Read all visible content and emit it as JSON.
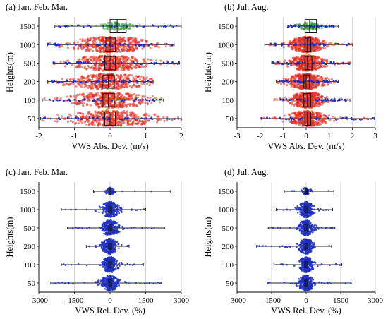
{
  "chart_data": [
    {
      "type": "scatter",
      "title": "(a) Jan. Feb. Mar.",
      "xlabel": "VWS Abs. Dev. (m/s)",
      "ylabel": "Heights(m)",
      "xlim": [
        -2,
        2
      ],
      "xticks": [
        "-2",
        "-1",
        "0",
        "1",
        "2"
      ],
      "categories": [
        "50",
        "100",
        "200",
        "500",
        "1000",
        "1500"
      ],
      "grid": "vertical",
      "series": [
        {
          "category": "1500",
          "min": -1.55,
          "max": 2.0,
          "q1": 0.0,
          "median": 0.2,
          "q3": 0.45,
          "spread": 0.45,
          "density": "low",
          "color": "#2ca02c"
        },
        {
          "category": "1000",
          "min": -1.75,
          "max": 1.8,
          "q1": -0.12,
          "median": 0.0,
          "q3": 0.15,
          "spread": 0.9,
          "density": "high",
          "color": "#e03020"
        },
        {
          "category": "500",
          "min": -1.6,
          "max": 1.95,
          "q1": -0.15,
          "median": 0.0,
          "q3": 0.15,
          "spread": 0.85,
          "density": "high",
          "color": "#e03020"
        },
        {
          "category": "200",
          "min": -1.75,
          "max": 1.2,
          "q1": -0.2,
          "median": -0.05,
          "q3": 0.12,
          "spread": 0.9,
          "density": "high",
          "color": "#e03020"
        },
        {
          "category": "100",
          "min": -1.9,
          "max": 1.5,
          "q1": -0.2,
          "median": -0.05,
          "q3": 0.12,
          "spread": 0.95,
          "density": "high",
          "color": "#e03020"
        },
        {
          "category": "50",
          "min": -1.95,
          "max": 2.0,
          "q1": -0.15,
          "median": 0.0,
          "q3": 0.15,
          "spread": 1.0,
          "density": "high",
          "color": "#e03020"
        }
      ]
    },
    {
      "type": "scatter",
      "title": "(b) Jul. Aug.",
      "xlabel": "VWS Abs. Dev. (m/s)",
      "ylabel": "Heights(m)",
      "xlim": [
        -3,
        3
      ],
      "xticks": [
        "-3",
        "-2",
        "-1",
        "0",
        "1",
        "2",
        "3"
      ],
      "categories": [
        "50",
        "100",
        "200",
        "500",
        "1000",
        "1500"
      ],
      "grid": "vertical",
      "series": [
        {
          "category": "1500",
          "min": -0.8,
          "max": 1.4,
          "q1": -0.05,
          "median": 0.15,
          "q3": 0.45,
          "spread": 0.4,
          "density": "low",
          "color": "#2ca02c"
        },
        {
          "category": "1000",
          "min": -1.8,
          "max": 2.0,
          "q1": -0.05,
          "median": 0.05,
          "q3": 0.2,
          "spread": 0.6,
          "density": "high",
          "color": "#e03020"
        },
        {
          "category": "500",
          "min": -1.5,
          "max": 1.9,
          "q1": -0.05,
          "median": 0.05,
          "q3": 0.25,
          "spread": 0.6,
          "density": "high",
          "color": "#e03020"
        },
        {
          "category": "200",
          "min": -1.3,
          "max": 1.4,
          "q1": -0.1,
          "median": 0.0,
          "q3": 0.15,
          "spread": 0.65,
          "density": "high",
          "color": "#e03020"
        },
        {
          "category": "100",
          "min": -1.4,
          "max": 1.9,
          "q1": -0.1,
          "median": 0.05,
          "q3": 0.2,
          "spread": 0.65,
          "density": "high",
          "color": "#e03020"
        },
        {
          "category": "50",
          "min": -1.95,
          "max": 2.95,
          "q1": -0.05,
          "median": 0.05,
          "q3": 0.2,
          "spread": 0.7,
          "density": "high",
          "color": "#e03020"
        }
      ]
    },
    {
      "type": "scatter",
      "title": "(c) Jan. Feb. Mar.",
      "xlabel": "VWS Rel. Dev. (%)",
      "ylabel": "Heights(m)",
      "xlim": [
        -3000,
        3000
      ],
      "xticks": [
        "-3000",
        "-1500",
        "0",
        "1500",
        "3000"
      ],
      "categories": [
        "50",
        "100",
        "200",
        "500",
        "1000",
        "1500"
      ],
      "grid": "vertical",
      "series": [
        {
          "category": "1500",
          "min": -700,
          "max": 2550,
          "q1": -40,
          "median": 0,
          "q3": 40,
          "spread": 150,
          "density": "low",
          "color": "#2030c0"
        },
        {
          "category": "1000",
          "min": -2050,
          "max": 1500,
          "q1": -60,
          "median": 0,
          "q3": 60,
          "spread": 300,
          "density": "high",
          "color": "#2030c0"
        },
        {
          "category": "500",
          "min": -1800,
          "max": 2300,
          "q1": -60,
          "median": 0,
          "q3": 60,
          "spread": 300,
          "density": "high",
          "color": "#2030c0"
        },
        {
          "category": "200",
          "min": -1000,
          "max": 800,
          "q1": -60,
          "median": 0,
          "q3": 60,
          "spread": 260,
          "density": "high",
          "color": "#2030c0"
        },
        {
          "category": "100",
          "min": -2050,
          "max": 1400,
          "q1": -60,
          "median": 0,
          "q3": 60,
          "spread": 260,
          "density": "high",
          "color": "#2030c0"
        },
        {
          "category": "50",
          "min": -2500,
          "max": 2150,
          "q1": -60,
          "median": 0,
          "q3": 60,
          "spread": 300,
          "density": "high",
          "color": "#2030c0"
        }
      ]
    },
    {
      "type": "scatter",
      "title": "(d) Jul. Aug.",
      "xlabel": "VWS Rel. Dev. (%)",
      "ylabel": "Heights(m)",
      "xlim": [
        -3000,
        3000
      ],
      "xticks": [
        "-3000",
        "-1500",
        "0",
        "1500",
        "3000"
      ],
      "categories": [
        "50",
        "100",
        "200",
        "500",
        "1000",
        "1500"
      ],
      "grid": "vertical",
      "series": [
        {
          "category": "1500",
          "min": -950,
          "max": 1200,
          "q1": -40,
          "median": 0,
          "q3": 40,
          "spread": 150,
          "density": "low",
          "color": "#2030c0"
        },
        {
          "category": "1000",
          "min": -1300,
          "max": 1150,
          "q1": -60,
          "median": 0,
          "q3": 60,
          "spread": 260,
          "density": "high",
          "color": "#2030c0"
        },
        {
          "category": "500",
          "min": -1650,
          "max": 1250,
          "q1": -60,
          "median": 0,
          "q3": 60,
          "spread": 280,
          "density": "high",
          "color": "#2030c0"
        },
        {
          "category": "200",
          "min": -2150,
          "max": 1100,
          "q1": -60,
          "median": 0,
          "q3": 60,
          "spread": 260,
          "density": "high",
          "color": "#2030c0"
        },
        {
          "category": "100",
          "min": -1400,
          "max": 1550,
          "q1": -60,
          "median": 0,
          "q3": 60,
          "spread": 260,
          "density": "high",
          "color": "#2030c0"
        },
        {
          "category": "50",
          "min": -1700,
          "max": 1950,
          "q1": -60,
          "median": 0,
          "q3": 60,
          "spread": 280,
          "density": "high",
          "color": "#2030c0"
        }
      ]
    }
  ]
}
